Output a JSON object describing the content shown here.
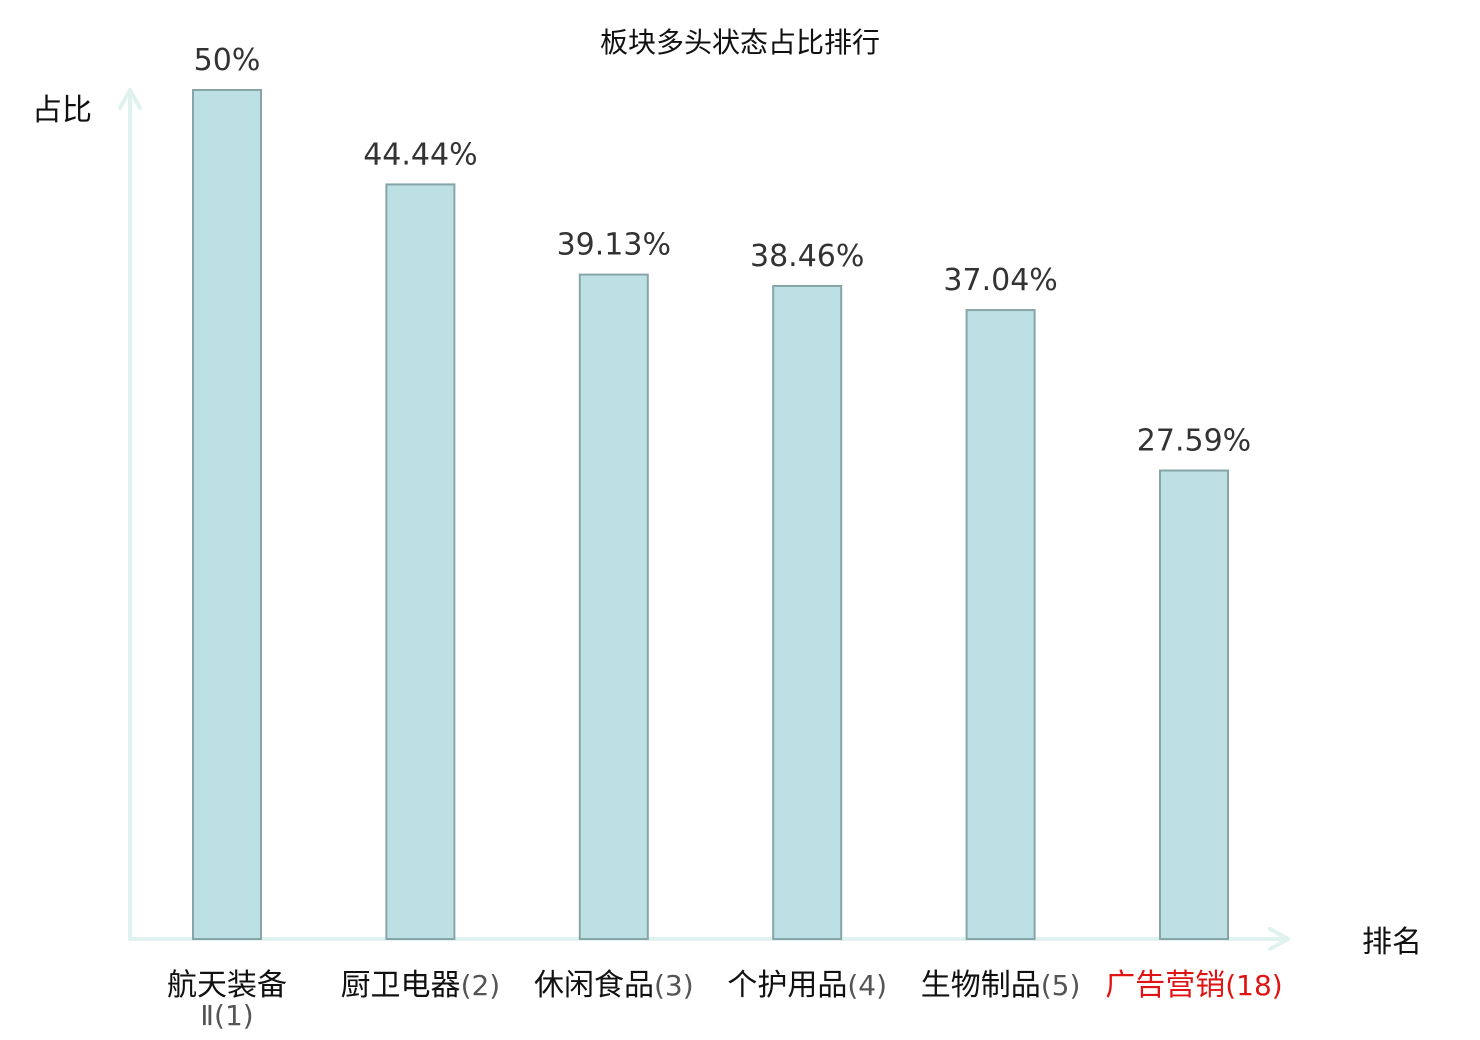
{
  "chart_data": {
    "type": "bar",
    "title": "板块多头状态占比排行",
    "xlabel": "排名",
    "ylabel": "占比",
    "categories": [
      {
        "name": "航天装备Ⅱ",
        "rank": "(1)",
        "highlight": false
      },
      {
        "name": "厨卫电器",
        "rank": "(2)",
        "highlight": false
      },
      {
        "name": "休闲食品",
        "rank": "(3)",
        "highlight": false
      },
      {
        "name": "个护用品",
        "rank": "(4)",
        "highlight": false
      },
      {
        "name": "生物制品",
        "rank": "(5)",
        "highlight": false
      },
      {
        "name": "广告营销",
        "rank": "(18)",
        "highlight": true
      }
    ],
    "values": [
      50,
      44.44,
      39.13,
      38.46,
      37.04,
      27.59
    ],
    "value_labels": [
      "50%",
      "44.44%",
      "39.13%",
      "38.46%",
      "37.04%",
      "27.59%"
    ],
    "ylim": [
      0,
      50
    ],
    "grid": false,
    "colors": {
      "bar_fill": "#bce0e3",
      "bar_stroke": "#87a5a8",
      "axis": "#dff2ef",
      "label_text": "#333333",
      "name_text": "#111111",
      "rank_text": "#555555",
      "highlight": "#e11414"
    }
  }
}
